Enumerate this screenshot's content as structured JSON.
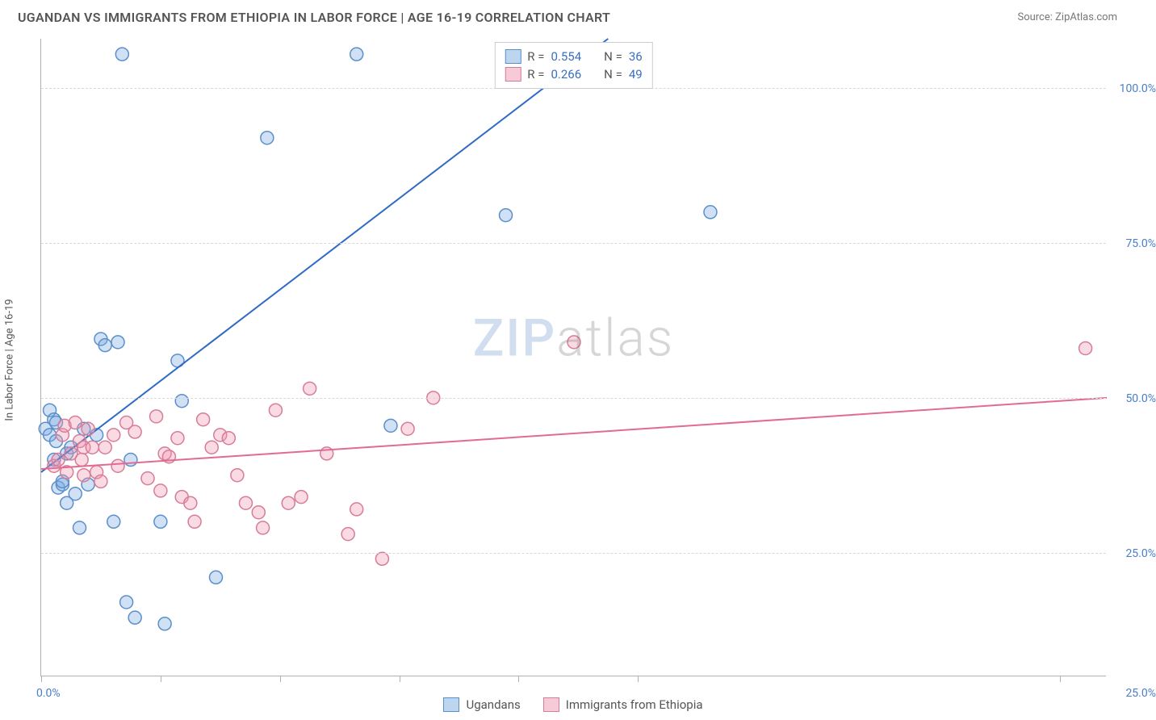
{
  "header": {
    "title": "UGANDAN VS IMMIGRANTS FROM ETHIOPIA IN LABOR FORCE | AGE 16-19 CORRELATION CHART",
    "source": "Source: ZipAtlas.com"
  },
  "ylabel": "In Labor Force | Age 16-19",
  "watermark": {
    "part1": "ZIP",
    "part2": "atlas"
  },
  "chart": {
    "type": "scatter",
    "xlim": [
      0,
      25
    ],
    "ylim": [
      5,
      108
    ],
    "x_ticks": [
      0,
      2.8,
      5.6,
      8.4,
      11.2,
      14.0,
      23.9
    ],
    "x_tick_labels": {
      "left": "0.0%",
      "right": "25.0%"
    },
    "y_gridlines": [
      25,
      50,
      75,
      100
    ],
    "y_tick_labels": [
      "25.0%",
      "50.0%",
      "75.0%",
      "100.0%"
    ],
    "grid_color": "#d8d8d8",
    "axis_color": "#b0b0b0",
    "background_color": "#ffffff",
    "marker_radius": 8,
    "marker_stroke_width": 1.5,
    "line_width": 2,
    "series": [
      {
        "name": "Ugandans",
        "fill_color": "rgba(120,170,225,0.35)",
        "stroke_color": "#5a8fca",
        "line_color": "#2f6ac5",
        "swatch_fill": "#bcd6f0",
        "swatch_border": "#5a8fca",
        "R": "0.554",
        "N": "36",
        "trend": {
          "x1": 0,
          "y1": 38,
          "x2": 13.3,
          "y2": 108
        },
        "points": [
          [
            0.1,
            45
          ],
          [
            0.2,
            48
          ],
          [
            0.2,
            44
          ],
          [
            0.3,
            46.5
          ],
          [
            0.3,
            40
          ],
          [
            0.35,
            46
          ],
          [
            0.35,
            43
          ],
          [
            0.4,
            35.5
          ],
          [
            0.5,
            36
          ],
          [
            0.5,
            36.5
          ],
          [
            0.6,
            33
          ],
          [
            0.6,
            41
          ],
          [
            0.7,
            42
          ],
          [
            0.8,
            34.5
          ],
          [
            0.9,
            29
          ],
          [
            1.0,
            45
          ],
          [
            1.1,
            36
          ],
          [
            1.3,
            44
          ],
          [
            1.4,
            59.5
          ],
          [
            1.5,
            58.5
          ],
          [
            1.7,
            30
          ],
          [
            1.8,
            59
          ],
          [
            1.9,
            105.5
          ],
          [
            2.0,
            17
          ],
          [
            2.1,
            40
          ],
          [
            2.2,
            14.5
          ],
          [
            2.8,
            30
          ],
          [
            2.9,
            13.5
          ],
          [
            3.2,
            56
          ],
          [
            3.3,
            49.5
          ],
          [
            4.1,
            21
          ],
          [
            5.3,
            92
          ],
          [
            7.4,
            105.5
          ],
          [
            8.2,
            45.5
          ],
          [
            10.9,
            79.5
          ],
          [
            15.7,
            80
          ]
        ]
      },
      {
        "name": "Immigrants from Ethiopia",
        "fill_color": "rgba(240,150,175,0.35)",
        "stroke_color": "#d77c98",
        "line_color": "#e36a92",
        "swatch_fill": "#f6cbd7",
        "swatch_border": "#d77c98",
        "R": "0.266",
        "N": "49",
        "trend": {
          "x1": 0,
          "y1": 38.5,
          "x2": 25,
          "y2": 50
        },
        "points": [
          [
            0.3,
            39
          ],
          [
            0.4,
            40
          ],
          [
            0.5,
            44
          ],
          [
            0.55,
            45.5
          ],
          [
            0.6,
            38
          ],
          [
            0.7,
            41
          ],
          [
            0.8,
            46
          ],
          [
            0.9,
            43
          ],
          [
            0.95,
            40
          ],
          [
            1.0,
            42
          ],
          [
            1.0,
            37.5
          ],
          [
            1.1,
            45
          ],
          [
            1.2,
            42
          ],
          [
            1.3,
            38
          ],
          [
            1.4,
            36.5
          ],
          [
            1.5,
            42
          ],
          [
            1.7,
            44
          ],
          [
            1.8,
            39
          ],
          [
            2.0,
            46
          ],
          [
            2.2,
            44.5
          ],
          [
            2.5,
            37
          ],
          [
            2.7,
            47
          ],
          [
            2.8,
            35
          ],
          [
            2.9,
            41
          ],
          [
            3.0,
            40.5
          ],
          [
            3.2,
            43.5
          ],
          [
            3.3,
            34
          ],
          [
            3.5,
            33
          ],
          [
            3.6,
            30
          ],
          [
            3.8,
            46.5
          ],
          [
            4.0,
            42
          ],
          [
            4.2,
            44
          ],
          [
            4.4,
            43.5
          ],
          [
            4.6,
            37.5
          ],
          [
            4.8,
            33
          ],
          [
            5.1,
            31.5
          ],
          [
            5.2,
            29
          ],
          [
            5.5,
            48
          ],
          [
            5.8,
            33
          ],
          [
            6.1,
            34
          ],
          [
            6.3,
            51.5
          ],
          [
            6.7,
            41
          ],
          [
            7.2,
            28
          ],
          [
            7.4,
            32
          ],
          [
            8.0,
            24
          ],
          [
            8.6,
            45
          ],
          [
            9.2,
            50
          ],
          [
            12.5,
            59
          ],
          [
            24.5,
            58
          ]
        ]
      }
    ]
  },
  "legend_top": {
    "rows": [
      {
        "swatch_fill": "#bcd6f0",
        "swatch_border": "#5a8fca",
        "r_label": "R =",
        "r_value": "0.554",
        "n_label": "N =",
        "n_value": "36"
      },
      {
        "swatch_fill": "#f6cbd7",
        "swatch_border": "#d77c98",
        "r_label": "R =",
        "r_value": "0.266",
        "n_label": "N =",
        "n_value": "49"
      }
    ]
  },
  "legend_bottom": {
    "items": [
      {
        "swatch_fill": "#bcd6f0",
        "swatch_border": "#5a8fca",
        "label": "Ugandans"
      },
      {
        "swatch_fill": "#f6cbd7",
        "swatch_border": "#d77c98",
        "label": "Immigrants from Ethiopia"
      }
    ]
  }
}
